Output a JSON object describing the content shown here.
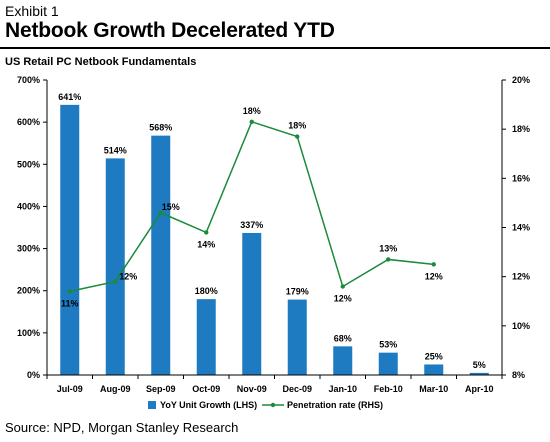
{
  "header": {
    "exhibit": "Exhibit 1",
    "title": "Netbook Growth Decelerated YTD",
    "subtitle": "US Retail PC Netbook Fundamentals"
  },
  "source": "Source: NPD, Morgan Stanley Research",
  "chart_data": {
    "type": "bar+line",
    "categories": [
      "Jul-09",
      "Aug-09",
      "Sep-09",
      "Oct-09",
      "Nov-09",
      "Dec-09",
      "Jan-10",
      "Feb-10",
      "Mar-10",
      "Apr-10"
    ],
    "series": [
      {
        "name": "YoY Unit Growth (LHS)",
        "type": "bar",
        "axis": "left",
        "color": "#1f7bc1",
        "values": [
          641,
          514,
          568,
          180,
          337,
          179,
          68,
          53,
          25,
          5
        ],
        "labels": [
          "641%",
          "514%",
          "568%",
          "180%",
          "337%",
          "179%",
          "68%",
          "53%",
          "25%",
          "5%"
        ]
      },
      {
        "name": "Penetration rate (RHS)",
        "type": "line",
        "axis": "right",
        "color": "#1a8a3c",
        "values": [
          11.4,
          11.8,
          14.6,
          13.8,
          18.3,
          17.7,
          11.6,
          12.7,
          12.5,
          null
        ],
        "labels": [
          "11%",
          "12%",
          "15%",
          "14%",
          "18%",
          "18%",
          "12%",
          "13%",
          "12%",
          ""
        ]
      }
    ],
    "y_left": {
      "min": 0,
      "max": 700,
      "step": 100,
      "ticks": [
        "0%",
        "100%",
        "200%",
        "300%",
        "400%",
        "500%",
        "600%",
        "700%"
      ]
    },
    "y_right": {
      "min": 8,
      "max": 20,
      "step": 2,
      "ticks": [
        "8%",
        "10%",
        "12%",
        "14%",
        "16%",
        "18%",
        "20%"
      ]
    },
    "grid": false,
    "legend_position": "bottom"
  }
}
